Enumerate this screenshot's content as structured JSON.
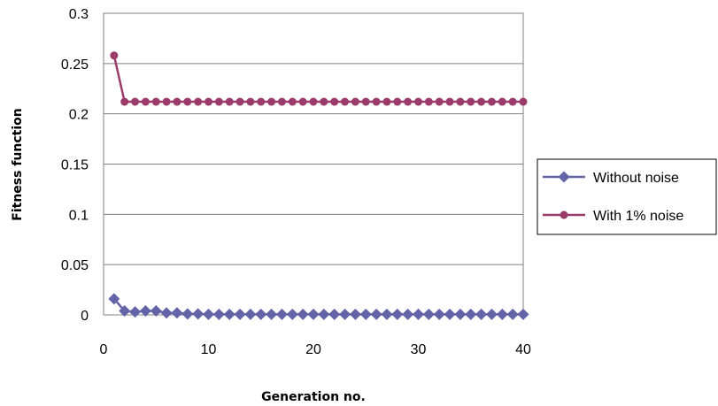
{
  "chart_data": {
    "type": "line",
    "title": "",
    "xlabel": "Generation no.",
    "ylabel": "Fitness function",
    "xlim": [
      0,
      40
    ],
    "ylim": [
      0,
      0.3
    ],
    "x_ticks": [
      "0",
      "10",
      "20",
      "30",
      "40"
    ],
    "y_ticks": [
      "0",
      "0.05",
      "0.1",
      "0.15",
      "0.2",
      "0.25",
      "0.3"
    ],
    "grid": "horizontal",
    "legend_position": "right",
    "x": [
      1,
      2,
      3,
      4,
      5,
      6,
      7,
      8,
      9,
      10,
      11,
      12,
      13,
      14,
      15,
      16,
      17,
      18,
      19,
      20,
      21,
      22,
      23,
      24,
      25,
      26,
      27,
      28,
      29,
      30,
      31,
      32,
      33,
      34,
      35,
      36,
      37,
      38,
      39,
      40
    ],
    "series": [
      {
        "name": "Without noise",
        "color": "#6264a7",
        "marker": "diamond",
        "values": [
          0.016,
          0.004,
          0.003,
          0.004,
          0.004,
          0.002,
          0.002,
          0.001,
          0.001,
          0.0005,
          0.0005,
          0.0005,
          0.0005,
          0.0005,
          0.0005,
          0.0005,
          0.0005,
          0.0005,
          0.0005,
          0.0005,
          0.0005,
          0.0005,
          0.0005,
          0.0005,
          0.0005,
          0.0005,
          0.0005,
          0.0005,
          0.0005,
          0.0005,
          0.0005,
          0.0005,
          0.0005,
          0.0005,
          0.0005,
          0.0005,
          0.0005,
          0.0005,
          0.0005,
          0.0005
        ]
      },
      {
        "name": "With 1% noise",
        "color": "#9b3b6b",
        "marker": "circle",
        "values": [
          0.258,
          0.212,
          0.212,
          0.212,
          0.212,
          0.212,
          0.212,
          0.212,
          0.212,
          0.212,
          0.212,
          0.212,
          0.212,
          0.212,
          0.212,
          0.212,
          0.212,
          0.212,
          0.212,
          0.212,
          0.212,
          0.212,
          0.212,
          0.212,
          0.212,
          0.212,
          0.212,
          0.212,
          0.212,
          0.212,
          0.212,
          0.212,
          0.212,
          0.212,
          0.212,
          0.212,
          0.212,
          0.212,
          0.212,
          0.212
        ]
      }
    ]
  }
}
